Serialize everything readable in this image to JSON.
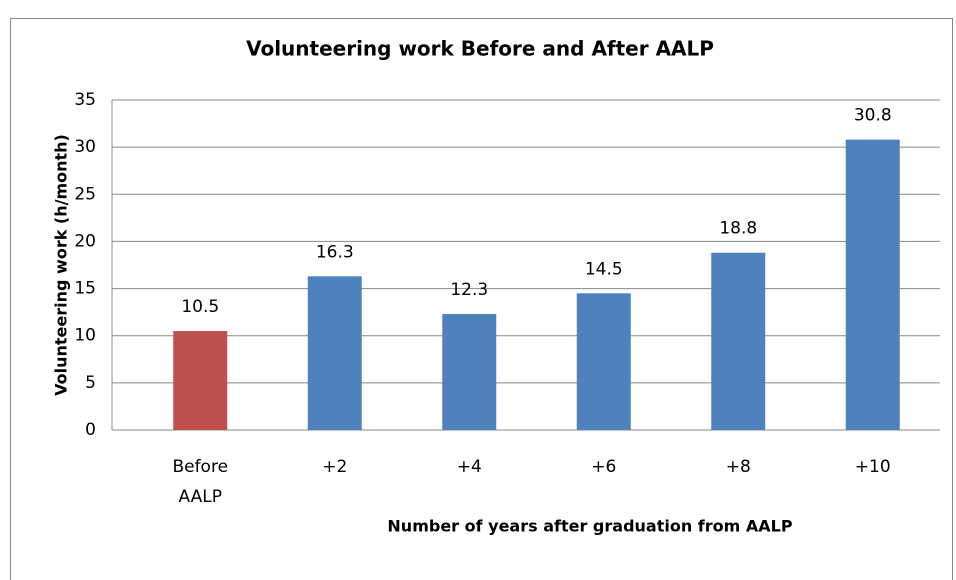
{
  "chart_data": {
    "type": "bar",
    "title": "Volunteering work Before and After AALP",
    "x_label": "Number of years after graduation from AALP",
    "y_label": "Volunteering work (h/month)",
    "categories": [
      "Before AALP",
      "+2",
      "+4",
      "+6",
      "+8",
      "+10"
    ],
    "values": [
      10.5,
      16.3,
      12.3,
      14.5,
      18.8,
      30.8
    ],
    "colors": [
      "#c0504d",
      "#4f81bd",
      "#4f81bd",
      "#4f81bd",
      "#4f81bd",
      "#4f81bd"
    ],
    "ylim": [
      0,
      35
    ],
    "yticks": [
      0,
      5,
      10,
      15,
      20,
      25,
      30,
      35
    ],
    "grid": true
  }
}
